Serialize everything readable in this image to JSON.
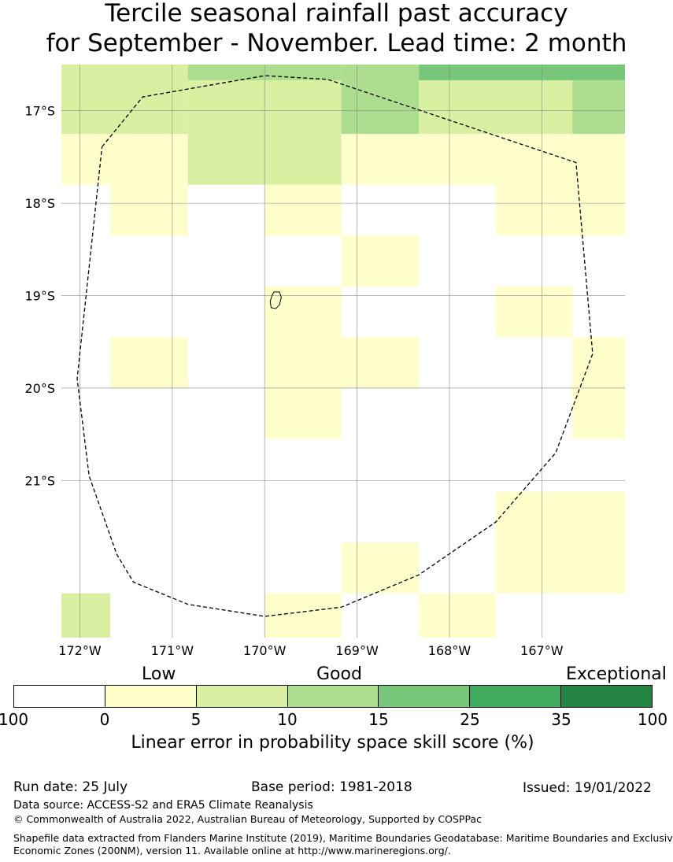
{
  "title": {
    "line1": "Tercile seasonal rainfall past accuracy",
    "line2": "for September - November. Lead time: 2 month"
  },
  "map": {
    "lon_labels": [
      "172°W",
      "171°W",
      "170°W",
      "169°W",
      "168°W",
      "167°W"
    ],
    "lat_labels": [
      "17°S",
      "18°S",
      "19°S",
      "20°S",
      "21°S"
    ],
    "lon_range": [
      -172.2,
      -166.1
    ],
    "lat_range": [
      -16.5,
      -22.7
    ],
    "grid_lons": [
      -172,
      -171,
      -170,
      -169,
      -168,
      -167
    ],
    "grid_lats": [
      -17,
      -18,
      -19,
      -20,
      -21
    ],
    "colors": {
      "c0": "#ffffcc",
      "c1": "#d9f0a3",
      "c2": "#addd8e",
      "c3": "#78c679",
      "c4": "#41ab5d",
      "c5": "#238443"
    },
    "cells": [
      {
        "lon0": -172.2,
        "lon1": -170.83,
        "lat0": -16.5,
        "lat1": -17.25,
        "cls": "c1"
      },
      {
        "lon0": -170.83,
        "lon1": -169.17,
        "lat0": -16.5,
        "lat1": -16.67,
        "cls": "c2"
      },
      {
        "lon0": -170.83,
        "lon1": -169.17,
        "lat0": -16.67,
        "lat1": -17.25,
        "cls": "c1"
      },
      {
        "lon0": -169.17,
        "lon1": -168.33,
        "lat0": -16.5,
        "lat1": -17.25,
        "cls": "c2"
      },
      {
        "lon0": -168.33,
        "lon1": -166.1,
        "lat0": -16.5,
        "lat1": -16.67,
        "cls": "c3"
      },
      {
        "lon0": -168.33,
        "lon1": -166.67,
        "lat0": -16.67,
        "lat1": -17.25,
        "cls": "c1"
      },
      {
        "lon0": -166.67,
        "lon1": -166.1,
        "lat0": -16.67,
        "lat1": -17.25,
        "cls": "c2"
      },
      {
        "lon0": -172.2,
        "lon1": -170.83,
        "lat0": -17.25,
        "lat1": -17.8,
        "cls": "c0"
      },
      {
        "lon0": -170.83,
        "lon1": -169.17,
        "lat0": -17.25,
        "lat1": -17.8,
        "cls": "c1"
      },
      {
        "lon0": -169.17,
        "lon1": -166.1,
        "lat0": -17.25,
        "lat1": -17.8,
        "cls": "c0"
      },
      {
        "lon0": -171.67,
        "lon1": -170.83,
        "lat0": -17.8,
        "lat1": -18.35,
        "cls": "c0"
      },
      {
        "lon0": -170.0,
        "lon1": -169.17,
        "lat0": -17.8,
        "lat1": -18.35,
        "cls": "c0"
      },
      {
        "lon0": -167.5,
        "lon1": -166.1,
        "lat0": -17.8,
        "lat1": -18.35,
        "cls": "c0"
      },
      {
        "lon0": -169.17,
        "lon1": -168.33,
        "lat0": -18.35,
        "lat1": -18.9,
        "cls": "c0"
      },
      {
        "lon0": -170.0,
        "lon1": -169.17,
        "lat0": -18.9,
        "lat1": -19.45,
        "cls": "c0"
      },
      {
        "lon0": -167.5,
        "lon1": -166.67,
        "lat0": -18.9,
        "lat1": -19.45,
        "cls": "c0"
      },
      {
        "lon0": -171.67,
        "lon1": -170.83,
        "lat0": -19.45,
        "lat1": -20.0,
        "cls": "c0"
      },
      {
        "lon0": -170.0,
        "lon1": -168.33,
        "lat0": -19.45,
        "lat1": -20.0,
        "cls": "c0"
      },
      {
        "lon0": -166.67,
        "lon1": -166.1,
        "lat0": -19.45,
        "lat1": -20.55,
        "cls": "c0"
      },
      {
        "lon0": -170.0,
        "lon1": -169.17,
        "lat0": -20.0,
        "lat1": -20.55,
        "cls": "c0"
      },
      {
        "lon0": -167.5,
        "lon1": -166.1,
        "lat0": -21.12,
        "lat1": -22.22,
        "cls": "c0"
      },
      {
        "lon0": -169.17,
        "lon1": -168.33,
        "lat0": -21.67,
        "lat1": -22.22,
        "cls": "c0"
      },
      {
        "lon0": -172.2,
        "lon1": -171.67,
        "lat0": -22.22,
        "lat1": -22.7,
        "cls": "c1"
      },
      {
        "lon0": -170.0,
        "lon1": -169.17,
        "lat0": -22.22,
        "lat1": -22.7,
        "cls": "c0"
      },
      {
        "lon0": -168.33,
        "lon1": -167.5,
        "lat0": -22.22,
        "lat1": -22.7,
        "cls": "c0"
      }
    ],
    "eez_boundary": [
      [
        -171.76,
        -17.39
      ],
      [
        -171.32,
        -16.85
      ],
      [
        -170.0,
        -16.62
      ],
      [
        -169.32,
        -16.66
      ],
      [
        -166.63,
        -17.56
      ],
      [
        -166.45,
        -19.63
      ],
      [
        -166.85,
        -20.7
      ],
      [
        -167.5,
        -21.45
      ],
      [
        -168.33,
        -22.02
      ],
      [
        -169.17,
        -22.37
      ],
      [
        -170.0,
        -22.47
      ],
      [
        -170.83,
        -22.34
      ],
      [
        -171.42,
        -22.1
      ],
      [
        -171.6,
        -21.8
      ],
      [
        -171.9,
        -20.95
      ],
      [
        -172.03,
        -19.9
      ],
      [
        -171.76,
        -17.39
      ]
    ],
    "island": [
      [
        -169.9,
        -18.96
      ],
      [
        -169.84,
        -18.96
      ],
      [
        -169.82,
        -19.02
      ],
      [
        -169.84,
        -19.1
      ],
      [
        -169.88,
        -19.14
      ],
      [
        -169.93,
        -19.13
      ],
      [
        -169.94,
        -19.06
      ],
      [
        -169.92,
        -19.0
      ],
      [
        -169.9,
        -18.96
      ]
    ]
  },
  "legend": {
    "words": [
      "Low",
      "Good",
      "Exceptional"
    ],
    "ticks": [
      "100",
      "0",
      "5",
      "10",
      "15",
      "25",
      "35",
      "100"
    ],
    "segment_colors": [
      "#ffffff",
      "#ffffcc",
      "#d9f0a3",
      "#addd8e",
      "#78c679",
      "#41ab5d",
      "#238443"
    ],
    "label": "Linear error in probability space skill score (%)"
  },
  "footer": {
    "run_date": "Run date: 25 July",
    "base_period": "Base period: 1981-2018",
    "issued": "Issued: 19/01/2022",
    "data_source": "Data source: ACCESS-S2 and ERA5 Climate Reanalysis",
    "copyright": "© Commonwealth of Australia 2022, Australian Bureau of Meteorology, Supported by COSPPac",
    "shapefile_line1": "Shapefile data extracted from Flanders Marine Institute (2019), Maritime Boundaries Geodatabase: Maritime Boundaries and Exclusive",
    "shapefile_line2": "Economic Zones (200NM), version 11. Available online at http://www.marineregions.org/."
  }
}
